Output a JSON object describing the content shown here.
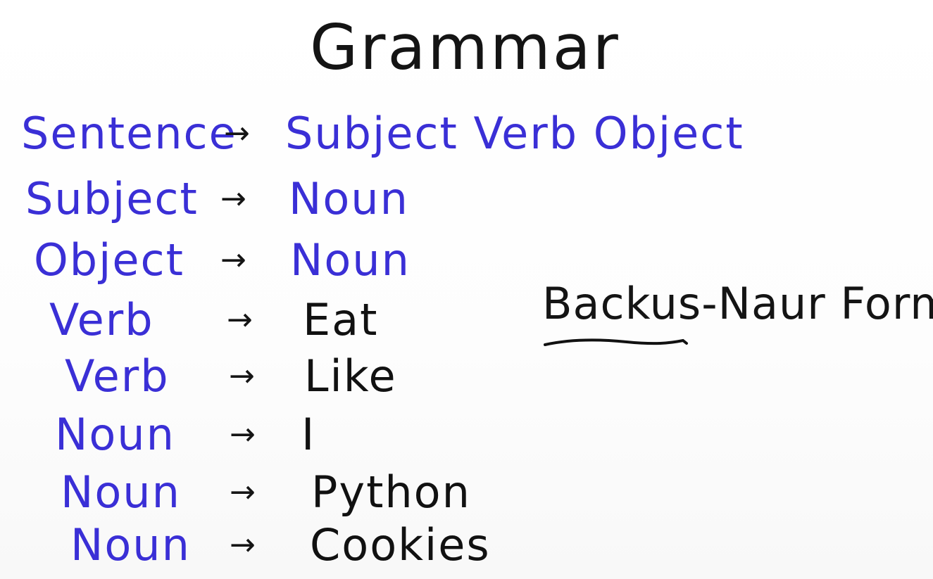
{
  "title": "Grammar",
  "bnf_label": "Backus-Naur Form",
  "arrow_glyph": "→",
  "colors": {
    "nonterminal": "#3a2fd6",
    "terminal": "#111111",
    "background": "#ffffff"
  },
  "rules": [
    {
      "lhs": "Sentence",
      "rhs": "Subject Verb Object",
      "rhs_kind": "nonterminal"
    },
    {
      "lhs": "Subject",
      "rhs": "Noun",
      "rhs_kind": "nonterminal"
    },
    {
      "lhs": "Object",
      "rhs": "Noun",
      "rhs_kind": "nonterminal"
    },
    {
      "lhs": "Verb",
      "rhs": "Eat",
      "rhs_kind": "terminal"
    },
    {
      "lhs": "Verb",
      "rhs": "Like",
      "rhs_kind": "terminal"
    },
    {
      "lhs": "Noun",
      "rhs": "I",
      "rhs_kind": "terminal"
    },
    {
      "lhs": "Noun",
      "rhs": "Python",
      "rhs_kind": "terminal"
    },
    {
      "lhs": "Noun",
      "rhs": "Cookies",
      "rhs_kind": "terminal"
    }
  ]
}
